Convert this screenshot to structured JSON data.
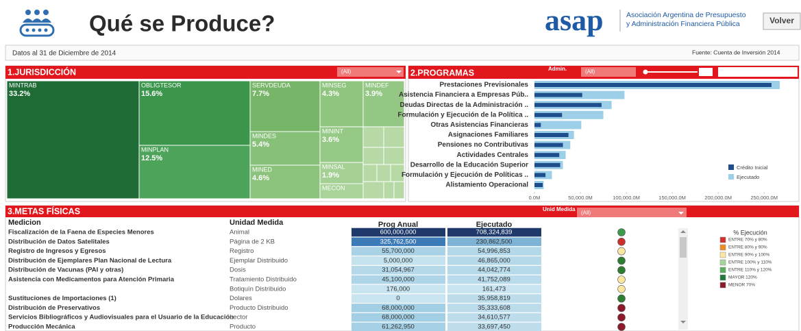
{
  "header": {
    "title": "Qué se Produce?",
    "logo": "asap",
    "org_line1": "Asociación Argentina de Presupuesto",
    "org_line2": "y Administración Financiera Pública",
    "button": "Volver"
  },
  "info": {
    "date": "Datos al 31 de Diciembre de 2014",
    "source": "Fuente: Cuenta de Inversión 2014"
  },
  "jurisdiccion": {
    "title": "1.JURISDICCIÓN",
    "filter": "(All)",
    "cells": [
      {
        "name": "MINTRAB",
        "value": 33.2,
        "label": "33.2%",
        "color": "#1e6b35"
      },
      {
        "name": "OBLIGTESOR",
        "value": 15.6,
        "label": "15.6%",
        "color": "#3b964c"
      },
      {
        "name": "MINPLAN",
        "value": 12.5,
        "label": "12.5%",
        "color": "#4ea35a"
      },
      {
        "name": "SERVDEUDA",
        "value": 7.7,
        "label": "7.7%",
        "color": "#77b668"
      },
      {
        "name": "MINDES",
        "value": 5.4,
        "label": "5.4%",
        "color": "#87c078"
      },
      {
        "name": "MINED",
        "value": 4.6,
        "label": "4.6%",
        "color": "#8cc37c"
      },
      {
        "name": "MINSEG",
        "value": 4.3,
        "label": "4.3%",
        "color": "#8fc57f"
      },
      {
        "name": "MINDEF",
        "value": 3.9,
        "label": "3.9%",
        "color": "#93c783"
      },
      {
        "name": "MININT",
        "value": 3.6,
        "label": "3.6%",
        "color": "#96c986"
      },
      {
        "name": "MINSAL",
        "value": 1.9,
        "label": "1.9%",
        "color": "#a4d094"
      },
      {
        "name": "MECON",
        "value": 1.2,
        "color": "#a9d399"
      }
    ]
  },
  "programas": {
    "type": "bar",
    "title": "2.PROGRAMAS",
    "filter_label": "Admin.",
    "filter": "(All)",
    "categories": [
      "Prestaciones Previsionales",
      "Asistencia Financiera a Empresas Púb..",
      "Deudas Directas de la Administración ..",
      "Formulación y Ejecución de la Política ..",
      "Otras Asistencias Financieras",
      "Asignaciones Familiares",
      "Pensiones no Contributivas",
      "Actividades Centrales",
      "Desarrollo de la Educación Superior",
      "Formulación y Ejecución de Políticas ..",
      "Alistamiento Operacional"
    ],
    "series": [
      {
        "name": "Ejecutado",
        "color": "#9dd0e8",
        "values": [
          267000,
          98000,
          84000,
          75000,
          51000,
          43000,
          39000,
          34000,
          31000,
          19000,
          10000
        ]
      },
      {
        "name": "Crédito Inicial",
        "color": "#1f4e8c",
        "values": [
          258000,
          52000,
          73000,
          30000,
          7000,
          37000,
          31000,
          27000,
          28000,
          12000,
          9000
        ]
      }
    ],
    "xlim": [
      0,
      270000
    ],
    "xticks": [
      {
        "value": 0,
        "label": "0.0M"
      },
      {
        "value": 50000,
        "label": "50,000.0M"
      },
      {
        "value": 100000,
        "label": "100,000.0M"
      },
      {
        "value": 150000,
        "label": "150,000.0M"
      },
      {
        "value": 200000,
        "label": "200,000.0M"
      },
      {
        "value": 250000,
        "label": "250,000.0M"
      }
    ]
  },
  "metas": {
    "title": "3.METAS FÍSICAS",
    "filter_label": "Unid Medida",
    "filter": "(All)",
    "columns": [
      "Medicion",
      "Unidad Medida",
      "Prog Anual",
      "Ejecutado"
    ],
    "rows": [
      {
        "cells": [
          "Fiscalización de la Faena de Especies Menores",
          "Animal",
          "600,000,000",
          "708,324,839"
        ],
        "prog_color": "#1f3a6a",
        "ejec_color": "#1f3a6a",
        "status_color": "#3a9a4a"
      },
      {
        "cells": [
          "Distribución de Datos Satelitales",
          "Página de 2 KB",
          "325,762,500",
          "230,862,500"
        ],
        "prog_color": "#3d7bb8",
        "ejec_color": "#7fb3d6",
        "status_color": "#c9302c"
      },
      {
        "cells": [
          "Registro de Ingresos y Egresos",
          "Registro",
          "55,700,000",
          "54,996,853"
        ],
        "prog_color": "#a9d2e6",
        "ejec_color": "#b3d8e9",
        "status_color": "#fbe7a1"
      },
      {
        "cells": [
          "Distribución de Ejemplares Plan Nacional de Lectura",
          "Ejemplar Distribuido",
          "5,000,000",
          "46,865,000"
        ],
        "prog_color": "#c5e2ef",
        "ejec_color": "#b6d9ea",
        "status_color": "#2e7d32"
      },
      {
        "cells": [
          "Distribución de Vacunas (PAI y otras)",
          "Dosis",
          "31,054,967",
          "44,042,774"
        ],
        "prog_color": "#b6d9ea",
        "ejec_color": "#b7daea",
        "status_color": "#2e7d32"
      },
      {
        "cells": [
          "Asistencia con Medicamentos para Atención Primaria",
          "Tratamiento Distribuido",
          "45,100,000",
          "41,752,089"
        ],
        "prog_color": "#aed5e8",
        "ejec_color": "#b9dbeb",
        "status_color": "#fbe7a1"
      },
      {
        "cells": [
          null,
          "Botiquín Distribuido",
          "176,000",
          "161,473"
        ],
        "prog_color": "#c8e4f0",
        "ejec_color": "#c8e4f0",
        "status_color": "#fbe7a1"
      },
      {
        "cells": [
          "Sustituciones de Importaciones (1)",
          "Dolares",
          "0",
          "35,958,819"
        ],
        "prog_color": "#c8e4f0",
        "ejec_color": "#bcdcec",
        "status_color": "#2e7d32"
      },
      {
        "cells": [
          "Distribución de Preservativos",
          "Producto Distribuido",
          "68,000,000",
          "35,333,608"
        ],
        "prog_color": "#a3cfe4",
        "ejec_color": "#bcdcec",
        "status_color": "#8b1a2b"
      },
      {
        "cells": [
          "Servicios Bibliográficos y Audiovisuales para el Usuario de la Educación",
          "Lector",
          "68,000,000",
          "34,610,577"
        ],
        "prog_color": "#a3cfe4",
        "ejec_color": "#bddded",
        "status_color": "#8b1a2b"
      },
      {
        "cells": [
          "Producción Mecánica",
          "Producto",
          "61,262,950",
          "33,697,450"
        ],
        "prog_color": "#a6d0e5",
        "ejec_color": "#bedded",
        "status_color": "#8b1a2b"
      }
    ],
    "legend": {
      "title": "% Ejecución",
      "items": [
        {
          "label": "ENTRE 70% y 80%",
          "color": "#d0312d"
        },
        {
          "label": "ENTRE 80% y 90%",
          "color": "#f08a24"
        },
        {
          "label": "ENTRE 90% y 100%",
          "color": "#fbe7a1"
        },
        {
          "label": "ENTRE 100% y 110%",
          "color": "#a6d49b"
        },
        {
          "label": "ENTRE 110% y 120%",
          "color": "#5aae61"
        },
        {
          "label": "MAYOR 120%",
          "color": "#1f7a3a"
        },
        {
          "label": "MENOR 70%",
          "color": "#8b1a2b"
        }
      ]
    }
  }
}
